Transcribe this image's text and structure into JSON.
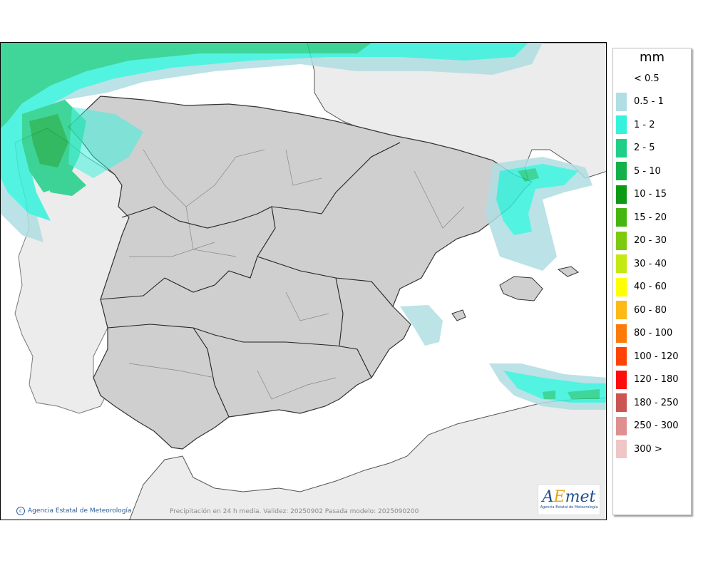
{
  "map": {
    "caption": "Precipitación en 24 h media. Validez: 20250902 Pasada modelo: 2025090200",
    "credit": "Agencia Estatal de Meteorología",
    "logo": {
      "word_a": "A",
      "word_e": "E",
      "word_rest": "met",
      "sub": "Agencia Estatal de Meteorología"
    }
  },
  "legend": {
    "unit": "mm",
    "entries": [
      {
        "label": "< 0.5",
        "color": "#ffffff"
      },
      {
        "label": "0.5 - 1",
        "color": "#b0dee2"
      },
      {
        "label": "1 - 2",
        "color": "#34f2dc"
      },
      {
        "label": "2 - 5",
        "color": "#1fcf88"
      },
      {
        "label": "5 - 10",
        "color": "#13b14a"
      },
      {
        "label": "10 - 15",
        "color": "#0c9a14"
      },
      {
        "label": "15 - 20",
        "color": "#45b512"
      },
      {
        "label": "20 - 30",
        "color": "#7ccb10"
      },
      {
        "label": "30 - 40",
        "color": "#c4e812"
      },
      {
        "label": "40 - 60",
        "color": "#ffff00"
      },
      {
        "label": "60 - 80",
        "color": "#fdb915"
      },
      {
        "label": "80 - 100",
        "color": "#fe7b0a"
      },
      {
        "label": "100 - 120",
        "color": "#ff4305"
      },
      {
        "label": "120 - 180",
        "color": "#ff0d0a"
      },
      {
        "label": "180 - 250",
        "color": "#cc5553"
      },
      {
        "label": "250 - 300",
        "color": "#e08f8f"
      },
      {
        "label": "300 >",
        "color": "#efc6c6"
      }
    ]
  }
}
